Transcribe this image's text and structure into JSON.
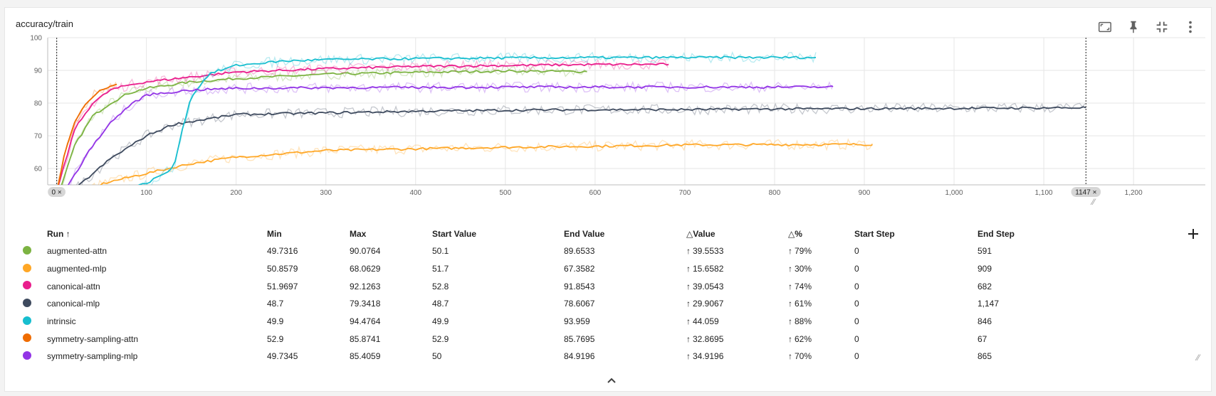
{
  "card": {
    "title": "accuracy/train"
  },
  "toolbar": {
    "icons": [
      "fit-domain-icon",
      "pin-icon",
      "collapse-icon",
      "more-vert-icon"
    ]
  },
  "chart_data": {
    "type": "line",
    "title": "accuracy/train",
    "xlabel": "",
    "ylabel": "",
    "xlim": [
      -10,
      1280
    ],
    "ylim": [
      55,
      100
    ],
    "x_ticks": [
      {
        "v": 0,
        "label": "0"
      },
      {
        "v": 100,
        "label": "100"
      },
      {
        "v": 200,
        "label": "200"
      },
      {
        "v": 300,
        "label": "300"
      },
      {
        "v": 400,
        "label": "400"
      },
      {
        "v": 500,
        "label": "500"
      },
      {
        "v": 600,
        "label": "600"
      },
      {
        "v": 700,
        "label": "700"
      },
      {
        "v": 800,
        "label": "800"
      },
      {
        "v": 900,
        "label": "900"
      },
      {
        "v": 1000,
        "label": "1,000"
      },
      {
        "v": 1100,
        "label": "1,100"
      },
      {
        "v": 1200,
        "label": "1,200"
      }
    ],
    "y_ticks": [
      {
        "v": 60,
        "label": "60"
      },
      {
        "v": 70,
        "label": "70"
      },
      {
        "v": 80,
        "label": "80"
      },
      {
        "v": 90,
        "label": "90"
      },
      {
        "v": 100,
        "label": "100"
      }
    ],
    "grid": true,
    "range_markers": [
      {
        "step": 0,
        "label": "0 ×"
      },
      {
        "step": 1147,
        "label": "1147 ×"
      }
    ],
    "series": [
      {
        "name": "augmented-attn",
        "color": "#7cb342",
        "x": [
          0,
          20,
          40,
          60,
          80,
          100,
          150,
          200,
          300,
          400,
          500,
          591
        ],
        "y": [
          50.1,
          67,
          76,
          80,
          83,
          84.5,
          86.5,
          87.5,
          88.8,
          89.4,
          89.8,
          89.65
        ]
      },
      {
        "name": "augmented-mlp",
        "color": "#ffa726",
        "x": [
          0,
          30,
          60,
          100,
          150,
          200,
          300,
          400,
          500,
          600,
          700,
          800,
          909
        ],
        "y": [
          51.7,
          53.5,
          56,
          58.5,
          61.5,
          63.5,
          65.5,
          66,
          66.5,
          66.8,
          67.2,
          67.3,
          67.36
        ]
      },
      {
        "name": "canonical-attn",
        "color": "#e91e8c",
        "x": [
          0,
          20,
          40,
          60,
          80,
          100,
          150,
          200,
          300,
          400,
          500,
          600,
          682
        ],
        "y": [
          52.8,
          72,
          80,
          84,
          85.5,
          86.5,
          88,
          89.5,
          90.5,
          91.2,
          91.5,
          91.8,
          91.85
        ]
      },
      {
        "name": "canonical-mlp",
        "color": "#3e4a5e",
        "x": [
          0,
          30,
          60,
          100,
          130,
          200,
          300,
          400,
          500,
          600,
          700,
          800,
          900,
          1000,
          1147
        ],
        "y": [
          48.7,
          56,
          63,
          70,
          73.5,
          76.5,
          77,
          77.5,
          77.8,
          78,
          78,
          78.2,
          78.3,
          78.4,
          78.6
        ]
      },
      {
        "name": "intrinsic",
        "color": "#17becf",
        "x": [
          0,
          60,
          100,
          130,
          140,
          150,
          170,
          200,
          250,
          300,
          400,
          500,
          600,
          700,
          846
        ],
        "y": [
          49.9,
          52,
          55.5,
          60,
          72,
          82,
          89,
          91.5,
          92.8,
          93.3,
          93.6,
          93.8,
          93.9,
          93.95,
          93.96
        ]
      },
      {
        "name": "symmetry-sampling-attn",
        "color": "#ef6c00",
        "x": [
          0,
          10,
          20,
          30,
          40,
          50,
          67
        ],
        "y": [
          52.9,
          66,
          74,
          79,
          82,
          84,
          85.77
        ]
      },
      {
        "name": "symmetry-sampling-mlp",
        "color": "#9334e6",
        "x": [
          0,
          20,
          40,
          60,
          80,
          100,
          150,
          200,
          300,
          400,
          500,
          600,
          700,
          800,
          865
        ],
        "y": [
          50,
          58,
          67,
          74,
          79,
          82.5,
          84,
          84.5,
          84.7,
          84.8,
          84.9,
          84.9,
          84.9,
          84.9,
          84.92
        ]
      }
    ]
  },
  "table": {
    "headers": [
      "Run ↑",
      "Min",
      "Max",
      "Start Value",
      "End Value",
      "△Value",
      "△%",
      "Start Step",
      "End Step"
    ],
    "rows": [
      {
        "run": "augmented-attn",
        "color": "#7cb342",
        "min": "49.7316",
        "max": "90.0764",
        "start": "50.1",
        "end": "89.6533",
        "dvalue": "39.5533",
        "dpct": "79%",
        "start_step": "0",
        "end_step": "591"
      },
      {
        "run": "augmented-mlp",
        "color": "#ffa726",
        "min": "50.8579",
        "max": "68.0629",
        "start": "51.7",
        "end": "67.3582",
        "dvalue": "15.6582",
        "dpct": "30%",
        "start_step": "0",
        "end_step": "909"
      },
      {
        "run": "canonical-attn",
        "color": "#e91e8c",
        "min": "51.9697",
        "max": "92.1263",
        "start": "52.8",
        "end": "91.8543",
        "dvalue": "39.0543",
        "dpct": "74%",
        "start_step": "0",
        "end_step": "682"
      },
      {
        "run": "canonical-mlp",
        "color": "#3e4a5e",
        "min": "48.7",
        "max": "79.3418",
        "start": "48.7",
        "end": "78.6067",
        "dvalue": "29.9067",
        "dpct": "61%",
        "start_step": "0",
        "end_step": "1,147"
      },
      {
        "run": "intrinsic",
        "color": "#17becf",
        "min": "49.9",
        "max": "94.4764",
        "start": "49.9",
        "end": "93.959",
        "dvalue": "44.059",
        "dpct": "88%",
        "start_step": "0",
        "end_step": "846"
      },
      {
        "run": "symmetry-sampling-attn",
        "color": "#ef6c00",
        "min": "52.9",
        "max": "85.8741",
        "start": "52.9",
        "end": "85.7695",
        "dvalue": "32.8695",
        "dpct": "62%",
        "start_step": "0",
        "end_step": "67"
      },
      {
        "run": "symmetry-sampling-mlp",
        "color": "#9334e6",
        "min": "49.7345",
        "max": "85.4059",
        "start": "50",
        "end": "84.9196",
        "dvalue": "34.9196",
        "dpct": "70%",
        "start_step": "0",
        "end_step": "865"
      }
    ]
  }
}
